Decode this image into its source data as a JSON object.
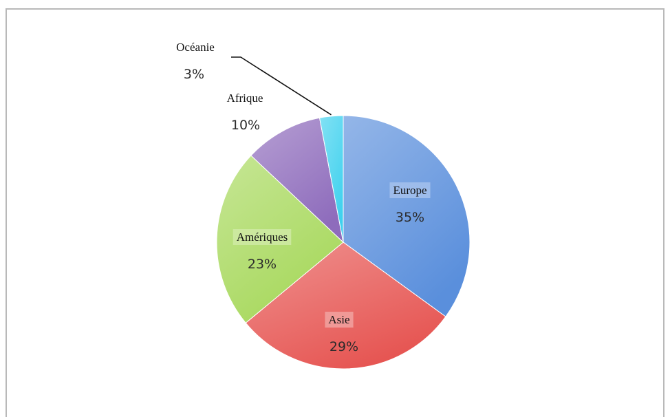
{
  "chart_data": {
    "type": "pie",
    "slices": [
      {
        "label": "Europe",
        "value": 35,
        "value_label": "35%",
        "color": "#5a8fdc"
      },
      {
        "label": "Asie",
        "value": 29,
        "value_label": "29%",
        "color": "#e65552"
      },
      {
        "label": "Amériques",
        "value": 23,
        "value_label": "23%",
        "color": "#a7d85c"
      },
      {
        "label": "Afrique",
        "value": 10,
        "value_label": "10%",
        "color": "#8e6cbc"
      },
      {
        "label": "Océanie",
        "value": 3,
        "value_label": "3%",
        "color": "#3fd1ee"
      }
    ],
    "start": "12 o'clock",
    "direction": "clockwise",
    "legend": "none"
  }
}
